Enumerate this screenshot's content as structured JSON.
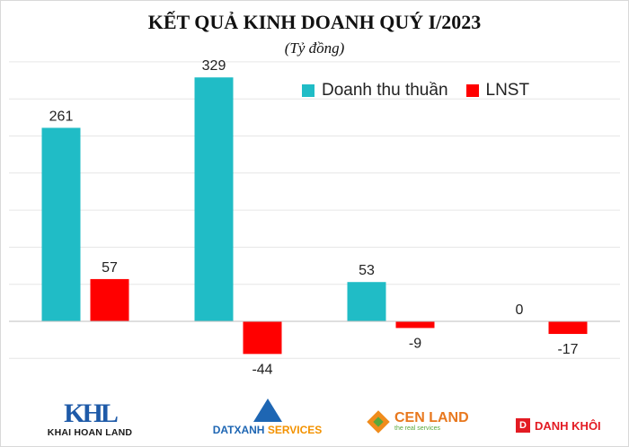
{
  "chart_data": {
    "type": "bar",
    "title": "KẾT QUẢ KINH DOANH QUÝ I/2023",
    "subtitle": "(Tỷ đồng)",
    "categories": [
      "KHAI HOAN LAND",
      "DATXANH SERVICES",
      "CEN LAND",
      "DANH KHÔI"
    ],
    "series": [
      {
        "name": "Doanh thu thuần",
        "values": [
          261,
          329,
          53,
          0
        ],
        "color": "#20bcc6"
      },
      {
        "name": "LNST",
        "values": [
          57,
          -44,
          -9,
          -17
        ],
        "color": "#ff0000"
      }
    ],
    "ylim": [
      -90,
      350
    ],
    "grid": true,
    "legend_position": "top-right"
  },
  "logos": {
    "khai_hoan": {
      "mark": "KHL",
      "name": "KHAI HOAN LAND"
    },
    "dat_xanh": {
      "name_a": "DATXANH",
      "name_b": " SERVICES"
    },
    "cen_land": {
      "name": "CEN LAND",
      "tag": "the real services"
    },
    "danh_khoi": {
      "mark": "D",
      "name": "DANH KHÔI"
    }
  }
}
